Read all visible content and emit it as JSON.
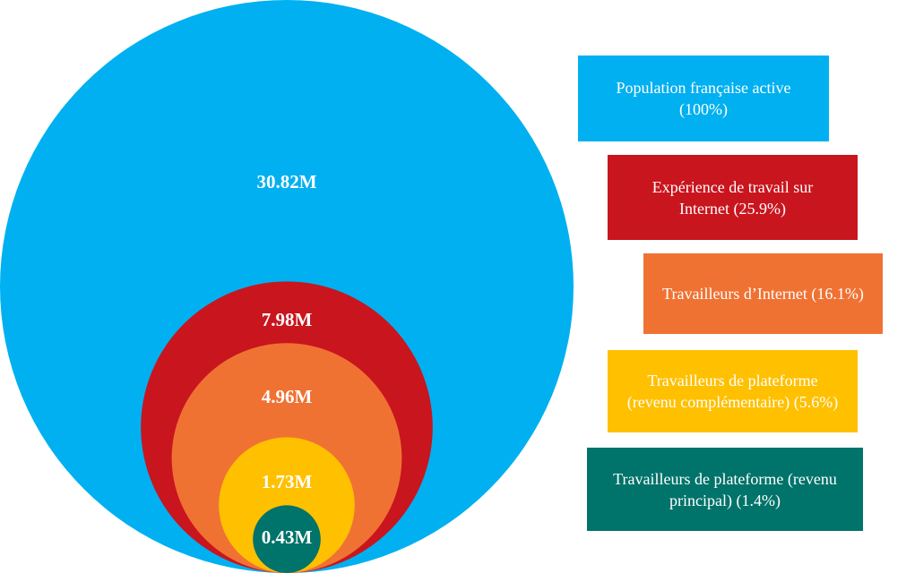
{
  "chart_data": {
    "type": "nested-circles",
    "categories": [
      "Population française active (100%)",
      "Expérience de travail sur Internet (25.9%)",
      "Travailleurs d’Internet (16.1%)",
      "Travailleurs de plateforme (revenu complémentaire) (5.6%)",
      "Travailleurs de plateforme (revenu principal) (1.4%)"
    ],
    "values": [
      30.82,
      7.98,
      4.96,
      1.73,
      0.43
    ],
    "value_labels": [
      "30.82M",
      "7.98M",
      "4.96M",
      "1.73M",
      "0.43M"
    ],
    "colors": [
      "#00b0f0",
      "#c9151e",
      "#f07233",
      "#ffc000",
      "#00736a"
    ]
  }
}
